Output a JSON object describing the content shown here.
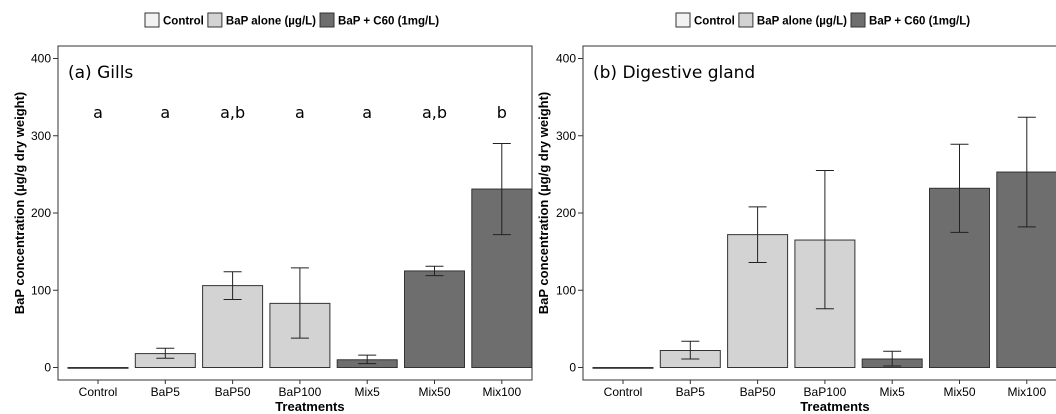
{
  "legend": [
    {
      "label": "Control",
      "color": "#f2f2f2"
    },
    {
      "label": "BaP alone (µg/L)",
      "color": "#d3d3d3"
    },
    {
      "label": "BaP + C60 (1mg/L)",
      "color": "#6e6e6e"
    }
  ],
  "chart_data": [
    {
      "type": "bar",
      "title": "(a) Gills",
      "xlabel": "Treatments",
      "ylabel": "BaP concentration (µg/g dry weight)",
      "ylim": [
        0,
        400
      ],
      "yticks": [
        0,
        100,
        200,
        300,
        400
      ],
      "grid": false,
      "legend_position": "top-center",
      "categories": [
        "Control",
        "BaP5",
        "BaP50",
        "BaP100",
        "Mix5",
        "Mix50",
        "Mix100"
      ],
      "groups": [
        "Control",
        "BaP alone (µg/L)",
        "BaP alone (µg/L)",
        "BaP alone (µg/L)",
        "BaP + C60 (1mg/L)",
        "BaP + C60 (1mg/L)",
        "BaP + C60 (1mg/L)"
      ],
      "values": [
        0,
        18,
        106,
        83,
        10,
        125,
        231
      ],
      "error_low": [
        0,
        12,
        88,
        38,
        5,
        119,
        172
      ],
      "error_high": [
        0,
        25,
        124,
        129,
        16,
        131,
        290
      ],
      "significance": [
        "a",
        "a",
        "a,b",
        "a",
        "a",
        "a,b",
        "b"
      ]
    },
    {
      "type": "bar",
      "title": "(b) Digestive gland",
      "xlabel": "Treatments",
      "ylabel": "BaP concentration (µg/g dry weight)",
      "ylim": [
        0,
        400
      ],
      "yticks": [
        0,
        100,
        200,
        300,
        400
      ],
      "grid": false,
      "legend_position": "top-center",
      "categories": [
        "Control",
        "BaP5",
        "BaP50",
        "BaP100",
        "Mix5",
        "Mix50",
        "Mix100"
      ],
      "groups": [
        "Control",
        "BaP alone (µg/L)",
        "BaP alone (µg/L)",
        "BaP alone (µg/L)",
        "BaP + C60 (1mg/L)",
        "BaP + C60 (1mg/L)",
        "BaP + C60 (1mg/L)"
      ],
      "values": [
        0,
        22,
        172,
        165,
        11,
        232,
        253
      ],
      "error_low": [
        0,
        11,
        136,
        76,
        2,
        175,
        182
      ],
      "error_high": [
        0,
        34,
        208,
        255,
        21,
        289,
        324
      ],
      "significance": []
    }
  ]
}
